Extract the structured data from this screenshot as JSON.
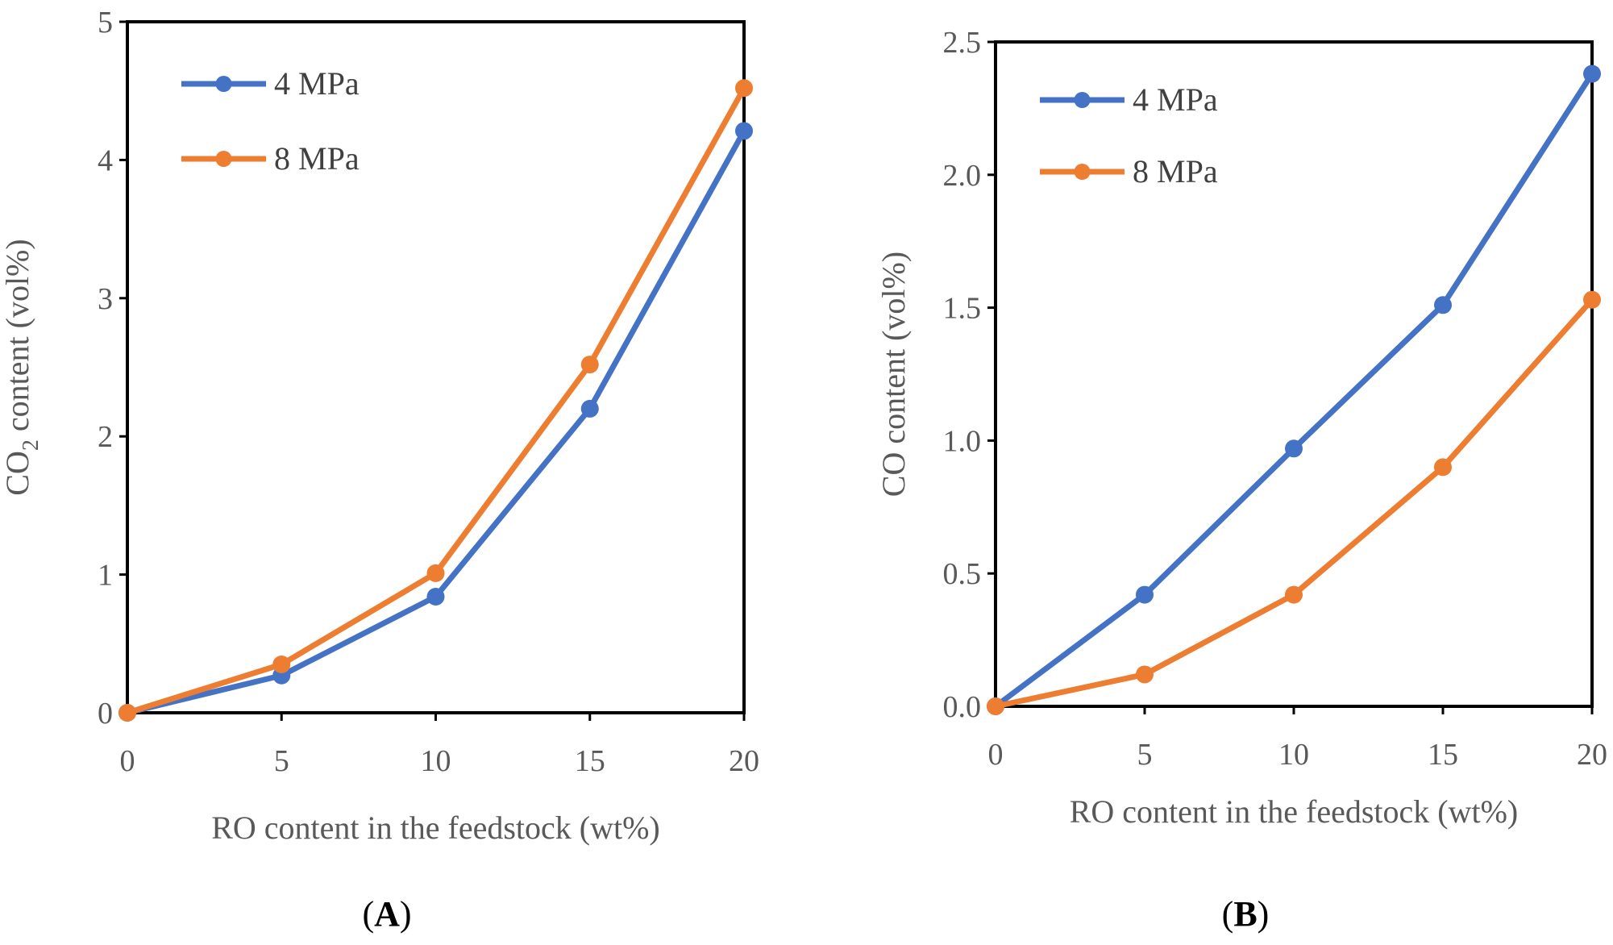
{
  "colors": {
    "series_4mpa": "#4472C4",
    "series_8mpa": "#ED7D31"
  },
  "chart_data": [
    {
      "type": "line",
      "panel_label": "A",
      "xlabel": "RO content in the feedstock (wt%)",
      "ylabel": "CO2 content (vol%)",
      "ylabel_main": "CO",
      "ylabel_sub": "2",
      "ylabel_rest": " content (vol%)",
      "x": [
        0,
        5,
        10,
        15,
        20
      ],
      "xlim": [
        0,
        20
      ],
      "ylim": [
        0,
        5
      ],
      "xticks": [
        "0",
        "5",
        "10",
        "15",
        "20"
      ],
      "yticks": [
        "0",
        "1",
        "2",
        "3",
        "4",
        "5"
      ],
      "legend_position": "top-left",
      "grid": false,
      "series": [
        {
          "name": "4 MPa",
          "values": [
            0.0,
            0.27,
            0.84,
            2.2,
            4.21
          ]
        },
        {
          "name": "8 MPa",
          "values": [
            0.0,
            0.35,
            1.01,
            2.52,
            4.52
          ]
        }
      ]
    },
    {
      "type": "line",
      "panel_label": "B",
      "xlabel": "RO content in the feedstock (wt%)",
      "ylabel": "CO content (vol%)",
      "x": [
        0,
        5,
        10,
        15,
        20
      ],
      "xlim": [
        0,
        20
      ],
      "ylim": [
        0,
        2.5
      ],
      "xticks": [
        "0",
        "5",
        "10",
        "15",
        "20"
      ],
      "yticks": [
        "0.0",
        "0.5",
        "1.0",
        "1.5",
        "2.0",
        "2.5"
      ],
      "legend_position": "top-left",
      "grid": false,
      "series": [
        {
          "name": "4 MPa",
          "values": [
            0.0,
            0.42,
            0.97,
            1.51,
            2.38
          ]
        },
        {
          "name": "8 MPa",
          "values": [
            0.0,
            0.12,
            0.42,
            0.9,
            1.53
          ]
        }
      ]
    }
  ]
}
